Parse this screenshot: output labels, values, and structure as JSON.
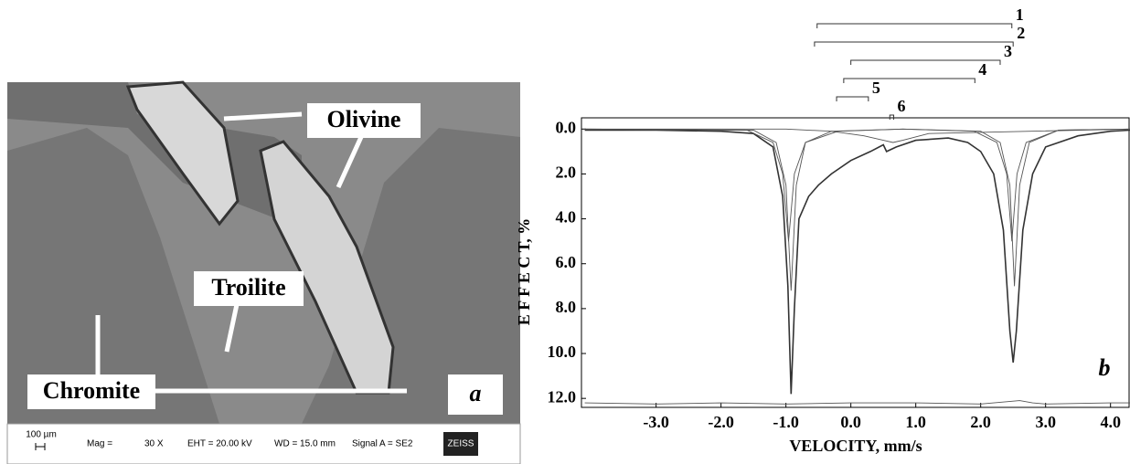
{
  "panel_a": {
    "labels": [
      "Olivine",
      "Troilite",
      "Chromite"
    ],
    "letter": "a",
    "info_bar": {
      "scale": "100 µm",
      "mag": "Mag =",
      "mag_value": "30 X",
      "eht": "EHT = 20.00 kV",
      "wd": "WD = 15.0 mm",
      "signal": "Signal A = SE2",
      "brand": "ZEISS"
    }
  },
  "chart_data": {
    "type": "line",
    "letter": "b",
    "x_label": "VELOCITY,  mm/s",
    "y_label": "E F F E C T,  %",
    "xlim": [
      -4.15,
      4.3
    ],
    "ylim": [
      -0.5,
      12.4
    ],
    "y_inverted": true,
    "xticks": [
      {
        "value": -3,
        "label": "-3.0"
      },
      {
        "value": -2,
        "label": "-2.0"
      },
      {
        "value": -1,
        "label": "-1.0"
      },
      {
        "value": 0,
        "label": "0.0"
      },
      {
        "value": 1,
        "label": "1.0"
      },
      {
        "value": 2,
        "label": "2.0"
      },
      {
        "value": 3,
        "label": "3.0"
      },
      {
        "value": 4,
        "label": "4.0"
      }
    ],
    "yticks": [
      {
        "value": 0,
        "label": "0.0"
      },
      {
        "value": 2,
        "label": "2.0"
      },
      {
        "value": 4,
        "label": "4.0"
      },
      {
        "value": 6,
        "label": "6.0"
      },
      {
        "value": 8,
        "label": "8.0"
      },
      {
        "value": 10,
        "label": "10.0"
      },
      {
        "value": 12,
        "label": "12.0"
      }
    ],
    "series": [
      {
        "color": "#333333",
        "x": [
          -4.1,
          -3.0,
          -2.0,
          -1.5,
          -1.2,
          -1.05,
          -0.97,
          -0.92,
          -0.87,
          -0.8,
          -0.65,
          -0.5,
          -0.3,
          0.0,
          0.3,
          0.5,
          0.55,
          0.7,
          1.0,
          1.5,
          1.8,
          2.0,
          2.2,
          2.35,
          2.45,
          2.5,
          2.55,
          2.65,
          2.8,
          3.0,
          3.5,
          4.0,
          4.3
        ],
        "values": [
          0.05,
          0.05,
          0.1,
          0.2,
          0.8,
          3.0,
          7.0,
          11.8,
          8.0,
          4.0,
          3.0,
          2.5,
          2.0,
          1.4,
          1.0,
          0.7,
          1.0,
          0.8,
          0.5,
          0.4,
          0.6,
          1.0,
          2.0,
          4.5,
          9.0,
          10.4,
          9.0,
          4.5,
          2.0,
          0.8,
          0.3,
          0.1,
          0.05
        ]
      },
      {
        "color": "#555555",
        "x": [
          -4.1,
          -1.5,
          -1.15,
          -1.0,
          -0.92,
          -0.84,
          -0.7,
          -0.3,
          0.8,
          2.0,
          2.3,
          2.45,
          2.52,
          2.6,
          2.75,
          3.2,
          4.3
        ],
        "values": [
          0,
          0.05,
          0.6,
          2.5,
          7.2,
          2.5,
          0.6,
          0.1,
          0,
          0.1,
          0.6,
          2.5,
          7.0,
          2.5,
          0.6,
          0.05,
          0
        ]
      },
      {
        "color": "#555555",
        "x": [
          -4.1,
          -1.6,
          -1.2,
          -1.05,
          -0.96,
          -0.87,
          -0.7,
          -0.2,
          0.8,
          1.9,
          2.25,
          2.4,
          2.48,
          2.56,
          2.7,
          3.2,
          4.3
        ],
        "values": [
          0,
          0.05,
          0.6,
          2.0,
          5.0,
          2.0,
          0.6,
          0.1,
          0,
          0.1,
          0.6,
          2.0,
          5.0,
          2.0,
          0.6,
          0.05,
          0
        ]
      },
      {
        "color": "#555555",
        "x": [
          -4.1,
          -1.0,
          -0.3,
          0.2,
          0.5,
          0.65,
          0.8,
          1.2,
          4.3
        ],
        "values": [
          0,
          0,
          0.1,
          0.3,
          0.5,
          0.6,
          0.5,
          0.2,
          0
        ]
      },
      {
        "color": "#555555",
        "x": [
          -4.1,
          -3.0,
          -2.0,
          -1.0,
          0.0,
          1.0,
          2.0,
          2.6,
          2.8,
          3.0,
          4.0,
          4.3
        ],
        "values": [
          12.2,
          12.25,
          12.2,
          12.25,
          12.2,
          12.2,
          12.25,
          12.1,
          12.2,
          12.25,
          12.2,
          12.2
        ]
      }
    ],
    "component_lines": [
      {
        "label": "1",
        "range": [
          -0.52,
          2.48
        ]
      },
      {
        "label": "2",
        "range": [
          -0.56,
          2.5
        ]
      },
      {
        "label": "3",
        "range": [
          0.0,
          2.3
        ]
      },
      {
        "label": "4",
        "range": [
          -0.11,
          1.91
        ]
      },
      {
        "label": "5",
        "range": [
          -0.22,
          0.27
        ]
      },
      {
        "label": "6",
        "range": [
          0.6,
          0.66
        ]
      }
    ]
  }
}
